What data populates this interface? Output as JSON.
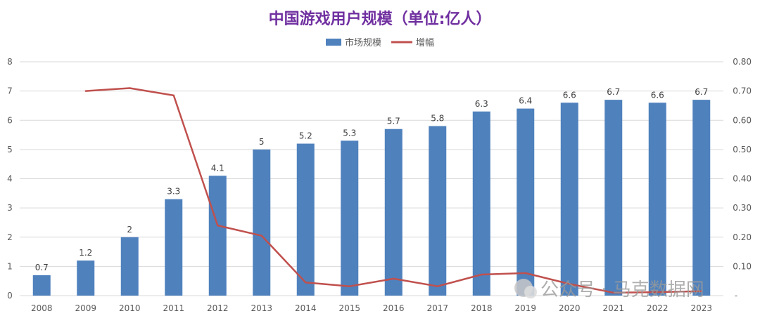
{
  "chart_data": {
    "type": "bar",
    "title": "中国游戏用户规模（单位:亿人）",
    "categories": [
      "2008",
      "2009",
      "2010",
      "2011",
      "2012",
      "2013",
      "2014",
      "2015",
      "2016",
      "2017",
      "2018",
      "2019",
      "2020",
      "2021",
      "2022",
      "2023"
    ],
    "series": [
      {
        "name": "市场规模",
        "type": "bar",
        "axis": "left",
        "color": "#4f81bd",
        "values": [
          0.7,
          1.2,
          2,
          3.3,
          4.1,
          5,
          5.2,
          5.3,
          5.7,
          5.8,
          6.3,
          6.4,
          6.6,
          6.7,
          6.6,
          6.7
        ],
        "labels": [
          "0.7",
          "1.2",
          "2",
          "3.3",
          "4.1",
          "5",
          "5.2",
          "5.3",
          "5.7",
          "5.8",
          "6.3",
          "6.4",
          "6.6",
          "6.7",
          "6.6",
          "6.7"
        ]
      },
      {
        "name": "增幅",
        "type": "line",
        "axis": "right",
        "color": "#c0504d",
        "values": [
          null,
          0.7,
          0.71,
          0.685,
          0.24,
          0.205,
          0.045,
          0.032,
          0.058,
          0.032,
          0.072,
          0.077,
          0.04,
          0.01,
          0.012,
          0.015
        ]
      }
    ],
    "y_left": {
      "min": 0,
      "max": 8,
      "ticks": [
        "0",
        "1",
        "2",
        "3",
        "4",
        "5",
        "6",
        "7",
        "8"
      ]
    },
    "y_right": {
      "min": 0,
      "max": 0.8,
      "ticks": [
        "-",
        "0.10",
        "0.20",
        "0.30",
        "0.40",
        "0.50",
        "0.60",
        "0.70",
        "0.80"
      ]
    },
    "grid": true,
    "legend": "top-center",
    "title_color": "#7030a0"
  },
  "watermark": {
    "text": "公众号 · 马克数据网"
  }
}
